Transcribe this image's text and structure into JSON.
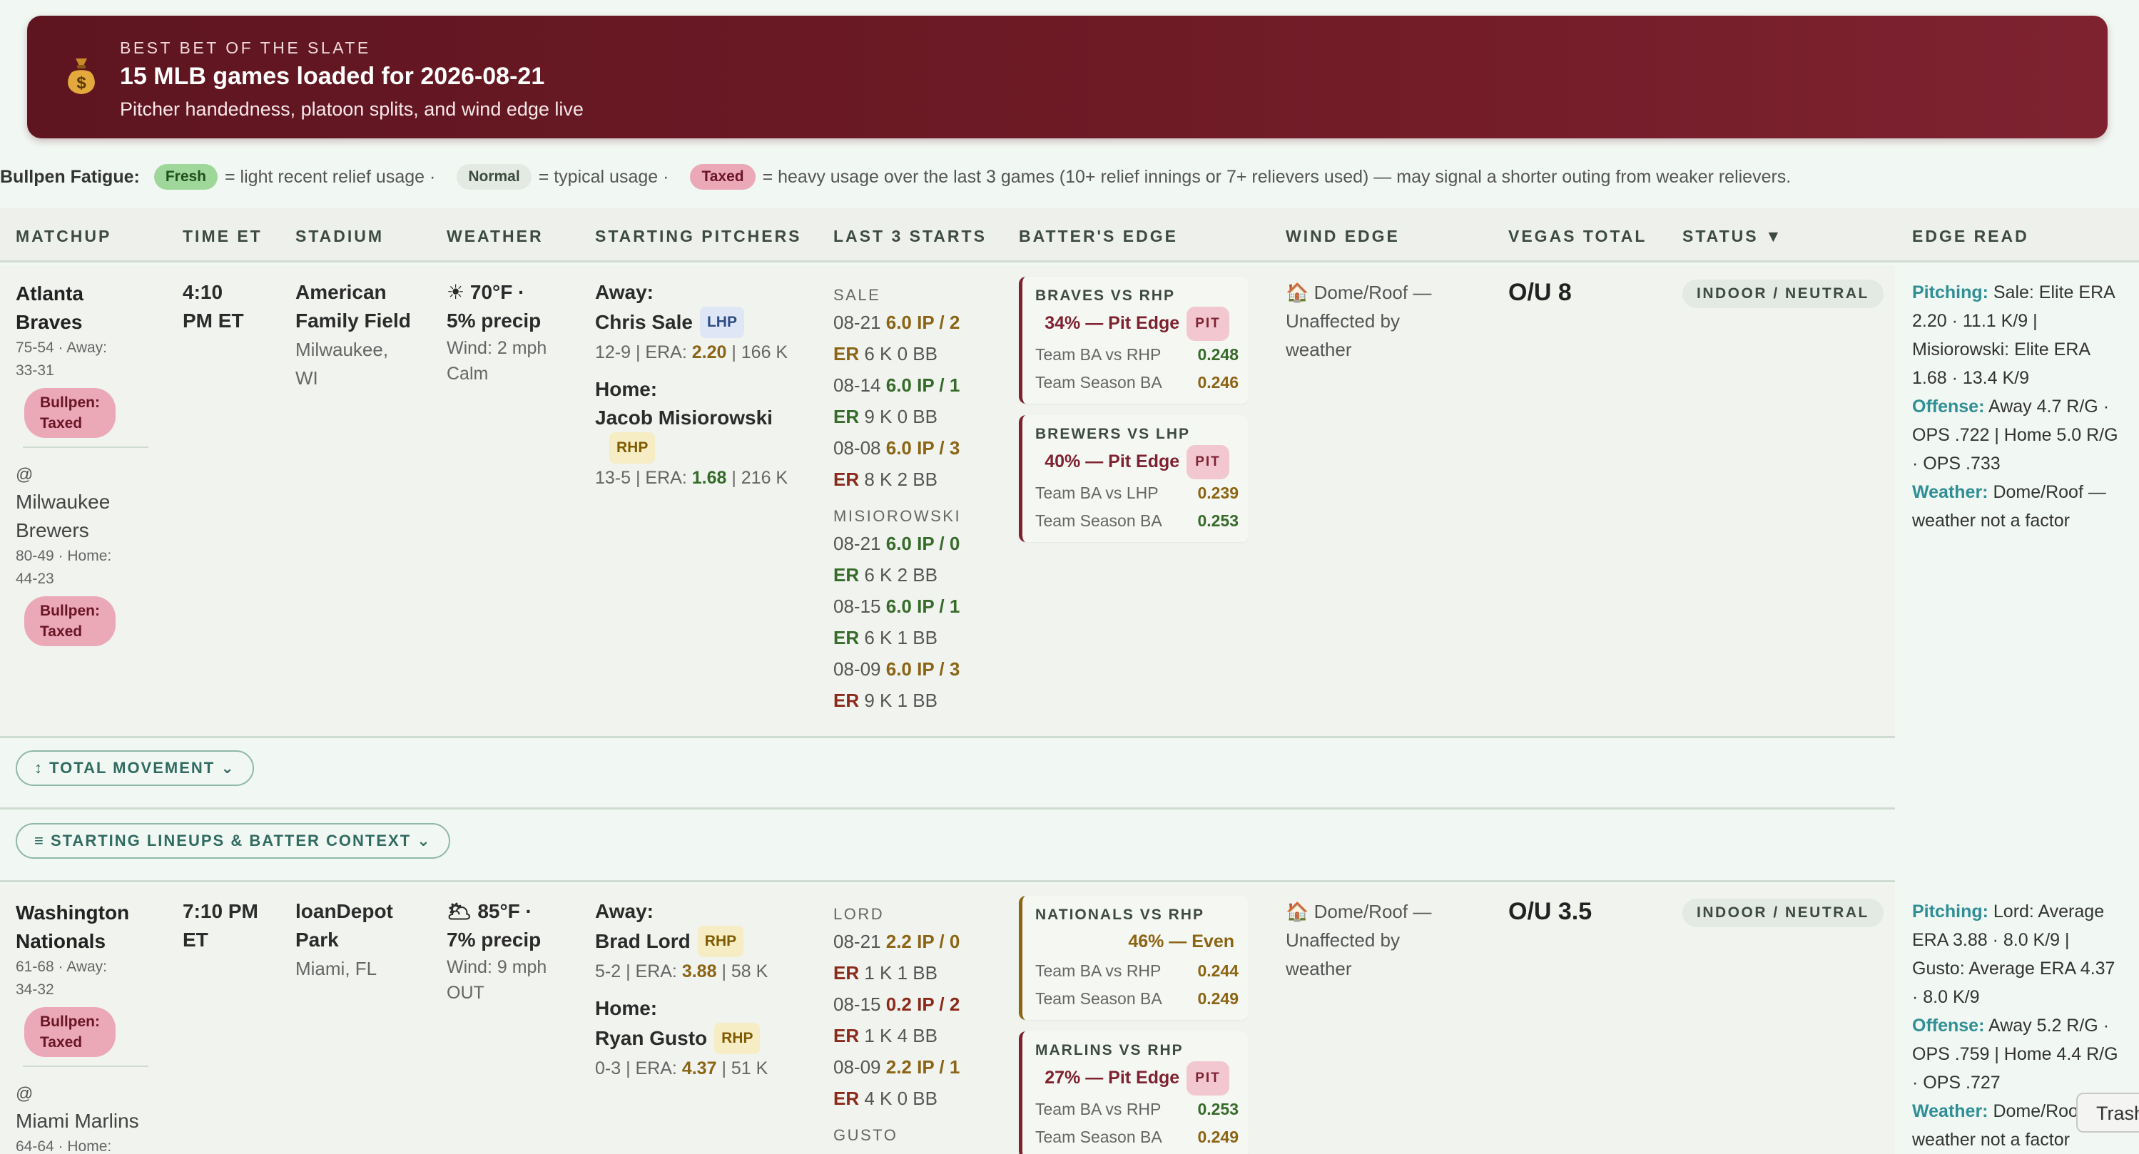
{
  "banner": {
    "kicker": "BEST BET OF THE SLATE",
    "headline": "15 MLB games loaded for 2026-08-21",
    "subline": "Pitcher handedness, platoon splits, and wind edge live"
  },
  "legend": {
    "label": "Bullpen Fatigue:",
    "fresh": "Fresh",
    "fresh_desc": "= light recent relief usage ·",
    "normal": "Normal",
    "normal_desc": "= typical usage ·",
    "taxed": "Taxed",
    "taxed_desc": "= heavy usage over the last 3 games (10+ relief innings or 7+ relievers used) — may signal a shorter outing from weaker relievers."
  },
  "columns": [
    "MATCHUP",
    "TIME ET",
    "STADIUM",
    "WEATHER",
    "STARTING PITCHERS",
    "LAST 3 STARTS",
    "BATTER'S EDGE",
    "WIND EDGE",
    "VEGAS TOTAL",
    "STATUS ▼",
    "EDGE READ"
  ],
  "games": [
    {
      "away_name_1": "Atlanta",
      "away_name_2": "Braves",
      "away_rec_1": "75-54 · Away:",
      "away_rec_2": "33-31",
      "away_bp_1": "Bullpen:",
      "away_bp_2": "Taxed",
      "at": "@",
      "home_name_1": "Milwaukee",
      "home_name_2": "Brewers",
      "home_rec_1": "80-49 · Home:",
      "home_rec_2": "44-23",
      "home_bp_1": "Bullpen:",
      "home_bp_2": "Taxed",
      "time_1": "4:10",
      "time_2": "PM ET",
      "stadium_1": "American",
      "stadium_2": "Family Field",
      "loc_1": "Milwaukee,",
      "loc_2": "WI",
      "wx_1": "☀ 70°F ·",
      "wx_2": "5% precip",
      "wx_3": "Wind: 2 mph",
      "wx_4": "Calm",
      "away_label": "Away:",
      "away_pitcher": "Chris Sale",
      "away_hand": "LHP",
      "away_stats_pre": "12-9 | ERA: ",
      "away_era": "2.20",
      "away_stats_post": " | 166 K",
      "home_label": "Home:",
      "home_pitcher": "Jacob Misiorowski",
      "home_hand": "RHP",
      "home_stats_pre": "13-5 | ERA: ",
      "home_era": "1.68",
      "home_stats_post": " | 216 K",
      "ls_away_head": "SALE",
      "ls_away": [
        {
          "date": "08-21",
          "ip": "6.0 IP / 2",
          "line": "6 K 0 BB"
        },
        {
          "date": "08-14",
          "ip": "6.0 IP / 1",
          "line": "9 K 0 BB"
        },
        {
          "date": "08-08",
          "ip": "6.0 IP / 3",
          "line": "8 K 2 BB"
        }
      ],
      "ls_home_head": "MISIOROWSKI",
      "ls_home": [
        {
          "date": "08-21",
          "ip": "6.0 IP / 0",
          "line": "6 K 2 BB"
        },
        {
          "date": "08-15",
          "ip": "6.0 IP / 1",
          "line": "6 K 1 BB"
        },
        {
          "date": "08-09",
          "ip": "6.0 IP / 3",
          "line": "9 K 1 BB"
        }
      ],
      "er": "ER",
      "edge_cards": [
        {
          "title": "BRAVES VS RHP",
          "result": "34% — Pit Edge",
          "tag": "PIT",
          "s1_label": "Team BA vs RHP",
          "s1": "0.248",
          "s2_label": "Team Season BA",
          "s2": "0.246"
        },
        {
          "title": "BREWERS VS LHP",
          "result": "40% — Pit Edge",
          "tag": "PIT",
          "s1_label": "Team BA vs LHP",
          "s1": "0.239",
          "s2_label": "Team Season BA",
          "s2": "0.253"
        }
      ],
      "wind_1": "🏠 Dome/Roof —",
      "wind_2": "Unaffected by",
      "wind_3": "weather",
      "vegas": "O/U 8",
      "status": "INDOOR / NEUTRAL",
      "read_pitching_k": "Pitching:",
      "read_pitching_1": " Sale: Elite ERA",
      "read_pitching_2": "2.20 · 11.1 K/9 |",
      "read_pitching_3": "Misiorowski: Elite ERA",
      "read_pitching_4": "1.68 · 13.4 K/9",
      "read_offense_k": "Offense:",
      "read_offense_1": " Away 4.7 R/G ·",
      "read_offense_2": "OPS .722 | Home 5.0 R/G",
      "read_offense_3": "· OPS .733",
      "read_weather_k": "Weather:",
      "read_weather_1": " Dome/Roof —",
      "read_weather_2": "weather not a factor"
    },
    {
      "away_name_1": "Washington",
      "away_name_2": "Nationals",
      "away_rec_1": "61-68 · Away:",
      "away_rec_2": "34-32",
      "away_bp_1": "Bullpen:",
      "away_bp_2": "Taxed",
      "at": "@",
      "home_name_1": "Miami Marlins",
      "home_rec_1": "64-64 · Home:",
      "time_1": "7:10 PM",
      "time_2": "ET",
      "stadium_1": "loanDepot",
      "stadium_2": "Park",
      "loc_1": "Miami, FL",
      "wx_1": "🌥 85°F ·",
      "wx_2": "7% precip",
      "wx_3": "Wind: 9 mph",
      "wx_4": "OUT",
      "away_label": "Away:",
      "away_pitcher": "Brad Lord",
      "away_hand": "RHP",
      "away_stats_pre": "5-2 | ERA: ",
      "away_era": "3.88",
      "away_stats_post": " | 58 K",
      "home_label": "Home:",
      "home_pitcher": "Ryan Gusto",
      "home_hand": "RHP",
      "home_stats_pre": "0-3 | ERA: ",
      "home_era": "4.37",
      "home_stats_post": " | 51 K",
      "ls_away_head": "LORD",
      "ls_away": [
        {
          "date": "08-21",
          "ip": "2.2 IP / 0",
          "line": "1 K 1 BB"
        },
        {
          "date": "08-15",
          "ip": "0.2 IP / 2",
          "line": "1 K 4 BB"
        },
        {
          "date": "08-09",
          "ip": "2.2 IP / 1",
          "line": "4 K 0 BB"
        }
      ],
      "ls_home_head": "GUSTO",
      "er": "ER",
      "edge_cards": [
        {
          "title": "NATIONALS VS RHP",
          "result": "46% — Even",
          "s1_label": "Team BA vs RHP",
          "s1": "0.244",
          "s2_label": "Team Season BA",
          "s2": "0.249"
        },
        {
          "title": "MARLINS VS RHP",
          "result": "27% — Pit Edge",
          "tag": "PIT",
          "s1_label": "Team BA vs RHP",
          "s1": "0.253",
          "s2_label": "Team Season BA",
          "s2": "0.249"
        }
      ],
      "wind_1": "🏠 Dome/Roof —",
      "wind_2": "Unaffected by",
      "wind_3": "weather",
      "vegas": "O/U 3.5",
      "status": "INDOOR / NEUTRAL",
      "read_pitching_k": "Pitching:",
      "read_pitching_1": " Lord: Average",
      "read_pitching_2": "ERA 3.88 · 8.0 K/9 |",
      "read_pitching_3": "Gusto: Average ERA 4.37",
      "read_pitching_4": "· 8.0 K/9",
      "read_offense_k": "Offense:",
      "read_offense_1": " Away 5.2 R/G ·",
      "read_offense_2": "OPS .759 | Home 4.4 R/G",
      "read_offense_3": "· OPS .727",
      "read_weather_k": "Weather:",
      "read_weather_1": " Dome/Roof —",
      "read_weather_2": "weather not a factor"
    }
  ],
  "expanders": {
    "movement": "↕ TOTAL MOVEMENT ⌄",
    "lineups": "≡ STARTING LINEUPS & BATTER CONTEXT ⌄"
  },
  "trash": "Trash",
  "icons": {
    "banner": "money-bag-icon"
  }
}
